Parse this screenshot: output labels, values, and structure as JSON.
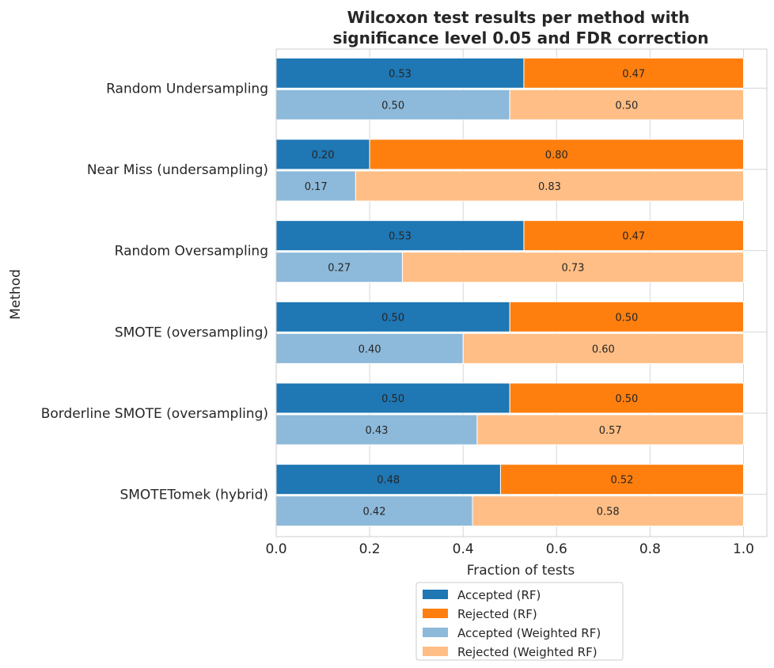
{
  "chart_data": {
    "type": "bar",
    "orientation": "horizontal",
    "stacked": true,
    "title": "Wilcoxon test results per method with\nsignificance level 0.05 and FDR correction",
    "xlabel": "Fraction of tests",
    "ylabel": "Method",
    "xlim": [
      0,
      1.05
    ],
    "xticks": [
      "0.0",
      "0.2",
      "0.4",
      "0.6",
      "0.8",
      "1.0"
    ],
    "grid": true,
    "legend_position": "bottom-center",
    "categories": [
      "Random Undersampling",
      "Near Miss (undersampling)",
      "Random Oversampling",
      "SMOTE (oversampling)",
      "Borderline SMOTE (oversampling)",
      "SMOTETomek (hybrid)"
    ],
    "series": [
      {
        "name": "Accepted (RF)",
        "color": "#1f77b4",
        "group": "RF",
        "values": [
          0.53,
          0.2,
          0.53,
          0.5,
          0.5,
          0.48
        ]
      },
      {
        "name": "Rejected (RF)",
        "color": "#ff7f0e",
        "group": "RF",
        "values": [
          0.47,
          0.8,
          0.47,
          0.5,
          0.5,
          0.52
        ]
      },
      {
        "name": "Accepted (Weighted RF)",
        "color": "#8db9da",
        "group": "Weighted RF",
        "values": [
          0.5,
          0.17,
          0.27,
          0.4,
          0.43,
          0.42
        ]
      },
      {
        "name": "Rejected (Weighted RF)",
        "color": "#ffbe85",
        "group": "Weighted RF",
        "values": [
          0.5,
          0.83,
          0.73,
          0.6,
          0.57,
          0.58
        ]
      }
    ]
  }
}
